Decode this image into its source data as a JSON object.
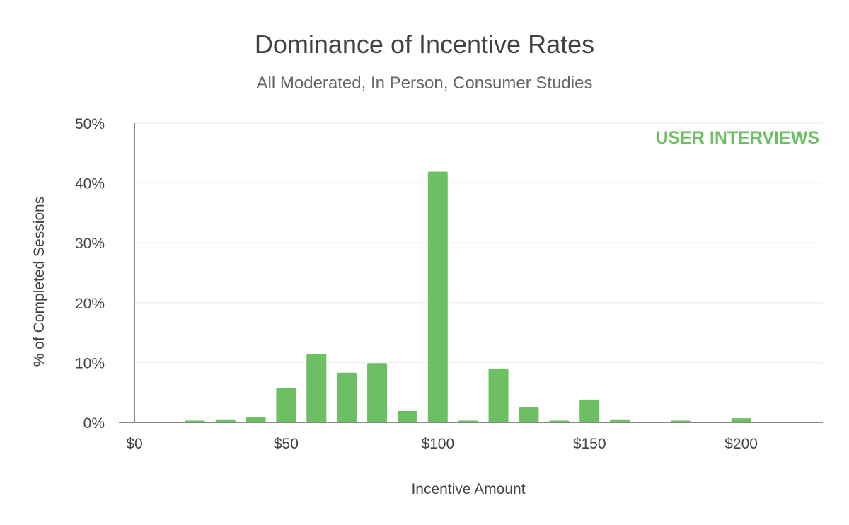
{
  "chart_data": {
    "type": "bar",
    "title": "Dominance of Incentive Rates",
    "subtitle": "All Moderated, In Person, Consumer Studies",
    "xlabel": "Incentive Amount",
    "ylabel": "% of Completed Sessions",
    "watermark": "USER INTERVIEWS",
    "x": [
      10,
      20,
      30,
      40,
      50,
      60,
      70,
      80,
      90,
      100,
      110,
      120,
      130,
      140,
      150,
      160,
      180,
      200,
      210
    ],
    "values": [
      0.05,
      0.3,
      0.5,
      0.95,
      5.7,
      11.4,
      8.3,
      9.9,
      1.9,
      41.9,
      0.3,
      9.0,
      2.6,
      0.3,
      3.8,
      0.5,
      0.3,
      0.7,
      0.05
    ],
    "xlim": [
      0,
      225
    ],
    "ylim": [
      0,
      50
    ],
    "xticks": [
      0,
      50,
      100,
      150,
      200
    ],
    "xtick_labels": [
      "$0",
      "$50",
      "$100",
      "$150",
      "$200"
    ],
    "yticks": [
      0,
      10,
      20,
      30,
      40,
      50
    ],
    "ytick_labels": [
      "0%",
      "10%",
      "20%",
      "30%",
      "40%",
      "50%"
    ],
    "grid": true,
    "colors": {
      "bar": "#6cbf63",
      "watermark": "#6cbf63",
      "text": "#424242",
      "axis": "#888888",
      "grid": "#f0f0f0"
    }
  }
}
